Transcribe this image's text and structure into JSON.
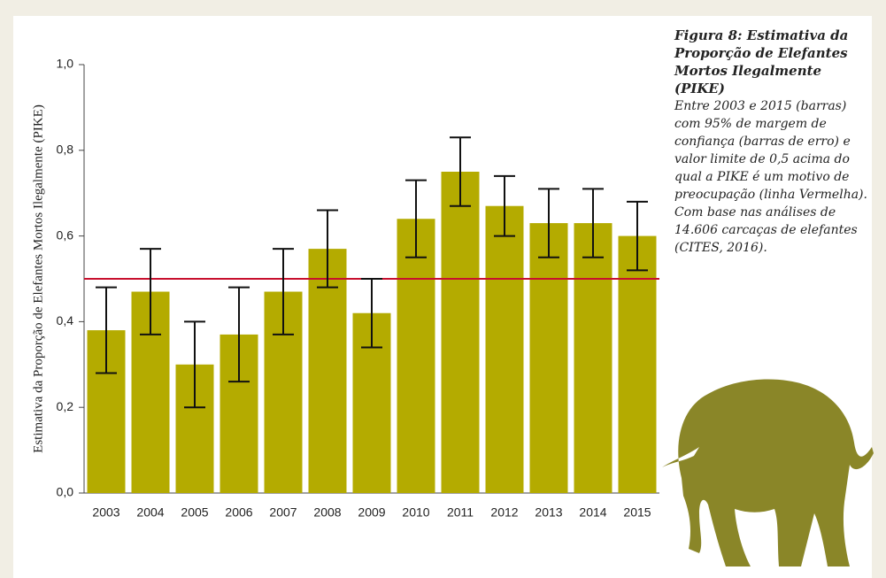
{
  "chart_data": {
    "type": "bar",
    "title": "Figura 8: Estimativa da Proporção de Elefantes Mortos Ilegalmente (PIKE)",
    "subtitle": "Entre 2003 e 2015 (barras) com 95% de margem de confiança (barras de erro) e valor limite de 0,5 acima do qual a PIKE é um motivo de preocupação (linha Vermelha). Com base nas análises de 14.606 carcaças de elefantes (CITES, 2016).",
    "y_label": "Estimativa da Proporção de Elefantes Mortos Ilegalmente (PIKE)",
    "categories": [
      "2003",
      "2004",
      "2005",
      "2006",
      "2007",
      "2008",
      "2009",
      "2010",
      "2011",
      "2012",
      "2013",
      "2014",
      "2015"
    ],
    "values": [
      0.38,
      0.47,
      0.3,
      0.37,
      0.47,
      0.57,
      0.42,
      0.64,
      0.75,
      0.67,
      0.63,
      0.63,
      0.6
    ],
    "errors": [
      0.1,
      0.1,
      0.1,
      0.11,
      0.1,
      0.09,
      0.08,
      0.09,
      0.08,
      0.07,
      0.08,
      0.08,
      0.08
    ],
    "color": "#b4ab00",
    "error_color": "#111111",
    "threshold": 0.5,
    "threshold_color": "#c8102e",
    "ylim": [
      0,
      1
    ],
    "yticks": [
      {
        "value": 0,
        "label": "0,0"
      },
      {
        "value": 0.2,
        "label": "0,2"
      },
      {
        "value": 0.4,
        "label": "0,4"
      },
      {
        "value": 0.6,
        "label": "0,6"
      },
      {
        "value": 0.8,
        "label": "0,8"
      },
      {
        "value": 1,
        "label": "1,0"
      }
    ]
  }
}
